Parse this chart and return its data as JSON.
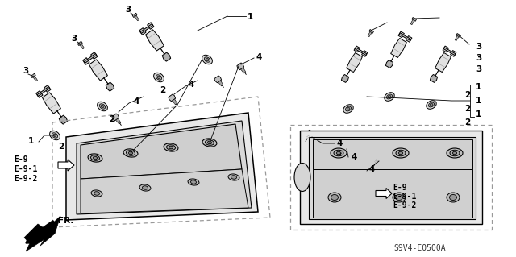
{
  "bg_color": "#ffffff",
  "line_color": "#000000",
  "dark_gray": "#555555",
  "mid_gray": "#888888",
  "light_gray": "#cccccc",
  "part_numbers_left": [
    "E-9",
    "E-9-1",
    "E-9-2"
  ],
  "part_numbers_right": [
    "E-9",
    "E-9-1",
    "E-9-2"
  ],
  "diagram_code": "S9V4-E0500A",
  "arrow_label": "FR.",
  "fig_width": 6.4,
  "fig_height": 3.19,
  "dpi": 100
}
